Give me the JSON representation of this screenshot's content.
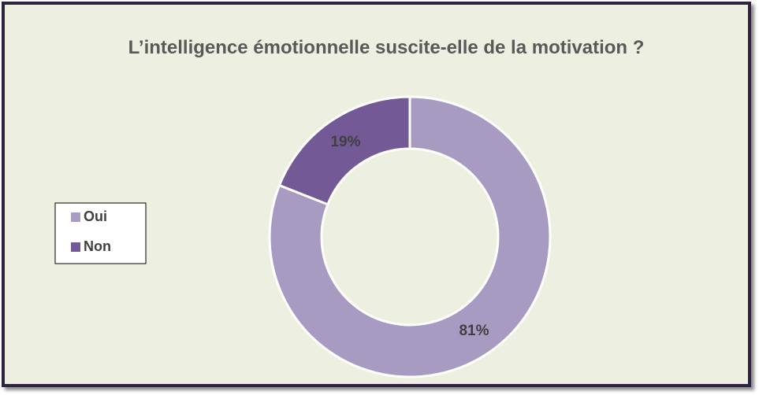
{
  "chart_data": {
    "type": "donut",
    "title": "L’intelligence émotionnelle suscite-elle de la motivation ?",
    "categories": [
      "Oui",
      "Non"
    ],
    "values": [
      81,
      19
    ],
    "value_labels": [
      "81%",
      "19%"
    ],
    "colors": [
      "#a89bc2",
      "#735a96"
    ],
    "legend": "left"
  }
}
